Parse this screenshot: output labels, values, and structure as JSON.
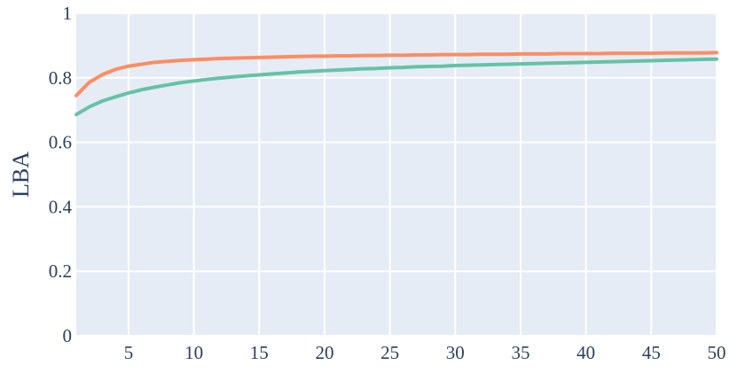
{
  "chart_data": {
    "type": "line",
    "title": "",
    "xlabel": "",
    "ylabel": "LBA",
    "xlim": [
      1,
      50
    ],
    "ylim": [
      0,
      1
    ],
    "x_ticks": [
      5,
      10,
      15,
      20,
      25,
      30,
      35,
      40,
      45,
      50
    ],
    "y_ticks": [
      0,
      0.2,
      0.4,
      0.6,
      0.8,
      1
    ],
    "y_tick_labels": [
      "0",
      "0.2",
      "0.4",
      "0.6",
      "0.8",
      "1"
    ],
    "grid": true,
    "legend": "none",
    "background_color": "#e5ecf6",
    "grid_color": "#ffffff",
    "x": [
      1,
      2,
      3,
      4,
      5,
      6,
      7,
      8,
      9,
      10,
      11,
      12,
      13,
      14,
      15,
      16,
      17,
      18,
      19,
      20,
      21,
      22,
      23,
      24,
      25,
      26,
      27,
      28,
      29,
      30,
      31,
      32,
      33,
      34,
      35,
      36,
      37,
      38,
      39,
      40,
      41,
      42,
      43,
      44,
      45,
      46,
      47,
      48,
      49,
      50
    ],
    "series": [
      {
        "color": "#fc8d62",
        "values": [
          0.745,
          0.786,
          0.81,
          0.826,
          0.836,
          0.842,
          0.848,
          0.851,
          0.854,
          0.856,
          0.858,
          0.86,
          0.861,
          0.862,
          0.863,
          0.864,
          0.865,
          0.866,
          0.867,
          0.867,
          0.868,
          0.868,
          0.869,
          0.869,
          0.87,
          0.87,
          0.871,
          0.871,
          0.872,
          0.872,
          0.872,
          0.873,
          0.873,
          0.873,
          0.874,
          0.874,
          0.874,
          0.875,
          0.875,
          0.875,
          0.875,
          0.876,
          0.876,
          0.876,
          0.876,
          0.877,
          0.877,
          0.877,
          0.877,
          0.878
        ]
      },
      {
        "color": "#66c2a5",
        "values": [
          0.686,
          0.71,
          0.728,
          0.741,
          0.753,
          0.763,
          0.771,
          0.778,
          0.785,
          0.79,
          0.795,
          0.799,
          0.803,
          0.806,
          0.809,
          0.812,
          0.815,
          0.818,
          0.82,
          0.822,
          0.824,
          0.826,
          0.828,
          0.829,
          0.831,
          0.832,
          0.834,
          0.835,
          0.836,
          0.838,
          0.839,
          0.84,
          0.841,
          0.842,
          0.843,
          0.844,
          0.845,
          0.846,
          0.847,
          0.848,
          0.849,
          0.85,
          0.851,
          0.852,
          0.853,
          0.854,
          0.855,
          0.856,
          0.857,
          0.858
        ]
      }
    ]
  }
}
